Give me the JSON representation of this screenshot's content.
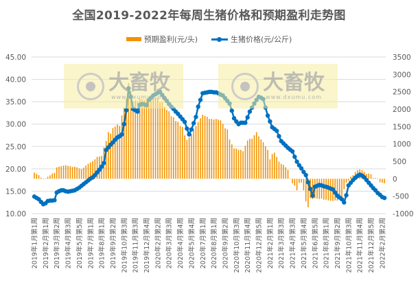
{
  "chart_data": {
    "type": "bar+line",
    "title": "全国2019-2022年每周生猪价格和预期盈利走势图",
    "legend_placement": "top",
    "grid": true,
    "x_tick_labels": [
      "2019年1月第1周",
      "2019年2月第1周",
      "2019年3月第2周",
      "2019年4月第3周",
      "2019年5月第5周",
      "2019年7月第1周",
      "2019年8月第1周",
      "2019年9月第2周",
      "2019年10月第3周",
      "2019年11月第3周",
      "2019年12月第4周",
      "2020年2月第2周",
      "2020年3月第3周",
      "2020年4月第4周",
      "2020年5月第4周",
      "2020年7月第1周",
      "2020年8月第1周",
      "2020年9月第2周",
      "2020年10月第3周",
      "2020年11月第4周",
      "2020年12月第5周",
      "2021年2月第1周",
      "2021年3月第3周",
      "2021年4月第3周",
      "2021年5月第4周",
      "2021年6月第5周",
      "2021年8月第1周",
      "2021年9月第2周",
      "2021年10月第3周",
      "2021年11月第4周",
      "2021年12月第5周",
      "2022年2月第2周"
    ],
    "x_tick_every_weeks": 5,
    "left_axis": {
      "ylim": [
        10,
        45
      ],
      "ticks": [
        "10.00",
        "15.00",
        "20.00",
        "25.00",
        "30.00",
        "35.00",
        "40.00",
        "45.00"
      ]
    },
    "right_axis": {
      "ylim": [
        -1000,
        3500
      ],
      "ticks": [
        "-1000",
        "-500",
        "0",
        "500",
        "1000",
        "1500",
        "2000",
        "2500",
        "3000",
        "3500"
      ]
    },
    "series": [
      {
        "name": "预期盈利(元/头)",
        "type": "bar",
        "axis": "right",
        "color": "#F39200",
        "values": [
          180,
          140,
          105,
          30,
          5,
          10,
          60,
          100,
          150,
          170,
          330,
          350,
          360,
          380,
          390,
          370,
          360,
          340,
          350,
          330,
          300,
          280,
          320,
          380,
          430,
          470,
          510,
          560,
          630,
          640,
          660,
          900,
          1090,
          1340,
          1300,
          1460,
          1500,
          1560,
          1520,
          1820,
          2050,
          2300,
          2750,
          2530,
          2230,
          2250,
          2230,
          2300,
          2280,
          2260,
          2250,
          2310,
          2300,
          2320,
          2330,
          2330,
          2200,
          2210,
          2070,
          1980,
          1940,
          1800,
          1770,
          1660,
          1640,
          1520,
          1490,
          1250,
          1120,
          1190,
          1280,
          1420,
          1520,
          1630,
          1740,
          1840,
          1810,
          1780,
          1720,
          1720,
          1700,
          1720,
          1700,
          1680,
          1580,
          1450,
          1420,
          1130,
          990,
          870,
          870,
          830,
          830,
          790,
          950,
          1100,
          1150,
          1150,
          1250,
          1340,
          1220,
          1130,
          1050,
          930,
          830,
          560,
          710,
          750,
          630,
          490,
          430,
          400,
          330,
          260,
          10,
          -130,
          -200,
          -330,
          -120,
          -110,
          -330,
          -650,
          -820,
          -560,
          -580,
          -560,
          -570,
          -580,
          -570,
          -600,
          -600,
          -620,
          -630,
          -640,
          -620,
          -630,
          -600,
          -550,
          -300,
          -110,
          -50,
          60,
          100,
          200,
          250,
          270,
          250,
          200,
          140,
          150,
          130,
          20,
          20,
          10,
          -100,
          -110,
          -130
        ]
      },
      {
        "name": "生猪价格(元/公斤)",
        "type": "line",
        "axis": "left",
        "color": "#0070C0",
        "values": [
          13.8,
          13.5,
          13.2,
          12.6,
          12.1,
          12.3,
          12.8,
          12.9,
          12.9,
          13.0,
          14.7,
          15.0,
          15.2,
          15.2,
          15.0,
          14.9,
          15.0,
          15.1,
          15.2,
          15.5,
          15.8,
          16.2,
          16.6,
          17.0,
          17.4,
          17.8,
          18.1,
          18.6,
          19.2,
          19.8,
          20.5,
          21.3,
          24.2,
          24.8,
          25.4,
          25.9,
          26.5,
          27.0,
          27.3,
          27.7,
          30.0,
          33.1,
          38.0,
          36.1,
          33.4,
          33.1,
          32.8,
          34.3,
          34.5,
          34.4,
          34.2,
          35.4,
          35.9,
          36.4,
          36.7,
          37.0,
          37.2,
          36.5,
          35.8,
          35.2,
          34.5,
          33.9,
          33.4,
          32.8,
          32.3,
          31.7,
          31.1,
          30.5,
          29.0,
          27.7,
          28.8,
          30.2,
          31.6,
          33.9,
          35.4,
          36.9,
          37.0,
          37.1,
          37.2,
          37.2,
          37.1,
          37.1,
          36.9,
          36.6,
          36.4,
          35.8,
          35.2,
          34.6,
          33.0,
          31.3,
          30.6,
          30.0,
          30.3,
          30.3,
          30.3,
          31.5,
          32.8,
          33.7,
          34.6,
          35.4,
          36.1,
          35.9,
          35.6,
          33.7,
          31.9,
          30.6,
          29.3,
          28.9,
          28.5,
          27.3,
          26.2,
          25.7,
          25.2,
          24.7,
          24.3,
          23.9,
          22.7,
          21.6,
          20.8,
          20.1,
          19.3,
          18.6,
          17.0,
          15.5,
          14.0,
          16.0,
          16.2,
          16.4,
          16.3,
          16.1,
          16.0,
          15.8,
          15.6,
          15.4,
          14.7,
          14.0,
          13.6,
          13.2,
          12.5,
          14.1,
          16.3,
          16.9,
          17.5,
          18.0,
          18.4,
          18.7,
          18.5,
          18.1,
          17.5,
          16.9,
          16.3,
          15.7,
          15.2,
          14.6,
          14.2,
          13.7,
          13.5
        ]
      }
    ]
  },
  "watermark": {
    "brand": "大畜牧",
    "url": "www.dxumu.com",
    "background": "#F5ECA0"
  },
  "colors": {
    "grid": "#D9D9D9",
    "text": "#595959"
  }
}
